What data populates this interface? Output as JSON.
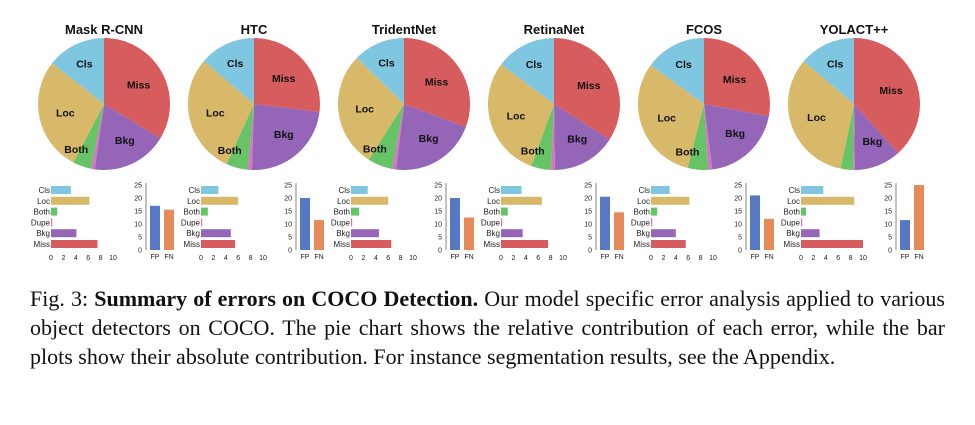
{
  "figure": {
    "categories": [
      "Cls",
      "Loc",
      "Both",
      "Dupe",
      "Bkg",
      "Miss"
    ],
    "bar_axis_ticks": [
      "0",
      "2",
      "4",
      "6",
      "8",
      "10"
    ],
    "fpfn_axis_ticks": [
      "0",
      "5",
      "10",
      "15",
      "20",
      "25"
    ],
    "fpfn_labels": [
      "FP",
      "FN"
    ],
    "colors": {
      "Cls": "#7fc6e1",
      "Loc": "#d8b96a",
      "Both": "#67c466",
      "Dupe": "#d873c6",
      "Bkg": "#9565b8",
      "Miss": "#d65c5d",
      "FP": "#5779c4",
      "FN": "#e58a58"
    }
  },
  "chart_data": [
    {
      "type": "pie+bar",
      "title": "Mask R-CNN",
      "pie_labels": [
        "Cls",
        "Loc",
        "Both",
        "Bkg",
        "Miss"
      ],
      "errors": {
        "Cls": 3.2,
        "Loc": 6.2,
        "Both": 1.0,
        "Dupe": 0.2,
        "Bkg": 4.1,
        "Miss": 7.5
      },
      "fp_fn": {
        "FP": 17,
        "FN": 15.5
      },
      "xlim": [
        0,
        10
      ],
      "ylim": [
        0,
        25
      ]
    },
    {
      "type": "pie+bar",
      "title": "HTC",
      "pie_labels": [
        "Cls",
        "Loc",
        "Both",
        "Bkg",
        "Miss"
      ],
      "errors": {
        "Cls": 2.8,
        "Loc": 6.0,
        "Both": 1.1,
        "Dupe": 0.2,
        "Bkg": 4.8,
        "Miss": 5.5
      },
      "fp_fn": {
        "FP": 20,
        "FN": 11.5
      },
      "xlim": [
        0,
        10
      ],
      "ylim": [
        0,
        25
      ]
    },
    {
      "type": "pie+bar",
      "title": "TridentNet",
      "pie_labels": [
        "Cls",
        "Loc",
        "Both",
        "Bkg",
        "Miss"
      ],
      "errors": {
        "Cls": 2.7,
        "Loc": 6.0,
        "Both": 1.3,
        "Dupe": 0.2,
        "Bkg": 4.5,
        "Miss": 6.5
      },
      "fp_fn": {
        "FP": 20,
        "FN": 12.5
      },
      "xlim": [
        0,
        10
      ],
      "ylim": [
        0,
        25
      ]
    },
    {
      "type": "pie+bar",
      "title": "RetinaNet",
      "pie_labels": [
        "Cls",
        "Loc",
        "Both",
        "Bkg",
        "Miss"
      ],
      "errors": {
        "Cls": 3.3,
        "Loc": 6.6,
        "Both": 1.1,
        "Dupe": 0.2,
        "Bkg": 3.5,
        "Miss": 7.6
      },
      "fp_fn": {
        "FP": 20.5,
        "FN": 14.5
      },
      "xlim": [
        0,
        10
      ],
      "ylim": [
        0,
        25
      ]
    },
    {
      "type": "pie+bar",
      "title": "FCOS",
      "pie_labels": [
        "Cls",
        "Loc",
        "Both",
        "Bkg",
        "Miss"
      ],
      "errors": {
        "Cls": 3.0,
        "Loc": 6.2,
        "Both": 1.0,
        "Dupe": 0.2,
        "Bkg": 4.0,
        "Miss": 5.6
      },
      "fp_fn": {
        "FP": 21,
        "FN": 12
      },
      "xlim": [
        0,
        10
      ],
      "ylim": [
        0,
        25
      ]
    },
    {
      "type": "pie+bar",
      "title": "YOLACT++",
      "pie_labels": [
        "Cls",
        "Loc",
        "Bkg",
        "Miss"
      ],
      "errors": {
        "Cls": 3.6,
        "Loc": 8.6,
        "Both": 0.8,
        "Dupe": 0.1,
        "Bkg": 3.0,
        "Miss": 10.0
      },
      "fp_fn": {
        "FP": 11.5,
        "FN": 25
      },
      "xlim": [
        0,
        10
      ],
      "ylim": [
        0,
        25
      ]
    }
  ],
  "caption": {
    "label": "Fig. 3:",
    "bold": "Summary of errors on COCO Detection.",
    "text": "Our model specific error analysis applied to various object detectors on COCO. The pie chart shows the relative contribution of each error, while the bar plots show their absolute contribution. For instance segmentation results, see the Appendix."
  }
}
